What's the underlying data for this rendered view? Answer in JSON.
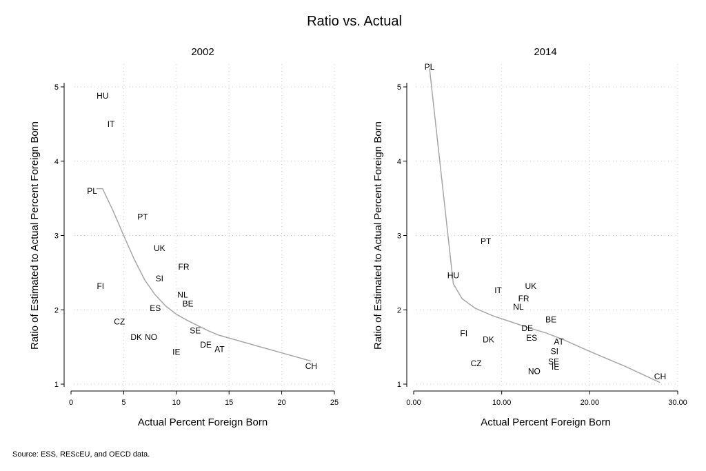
{
  "figure": {
    "title": "Ratio vs. Actual",
    "source": "Source: ESS, REScEU, and OECD data."
  },
  "chart_data": [
    {
      "type": "scatter",
      "title": "2002",
      "xlabel": "Actual Percent Foreign Born",
      "ylabel": "Ratio of Estimated to Actual Percent Foreign Born",
      "xlim": [
        0,
        25
      ],
      "ylim": [
        1,
        5
      ],
      "xticks": [
        0,
        5,
        10,
        15,
        20,
        25
      ],
      "xtick_labels": [
        "0",
        "5",
        "10",
        "15",
        "20",
        "25"
      ],
      "yticks": [
        1,
        2,
        3,
        4,
        5
      ],
      "ytick_labels": [
        "1",
        "2",
        "3",
        "4",
        "5"
      ],
      "grid": true,
      "points": [
        {
          "label": "HU",
          "x": 3.0,
          "y": 4.88
        },
        {
          "label": "IT",
          "x": 3.8,
          "y": 4.5
        },
        {
          "label": "PL",
          "x": 2.0,
          "y": 3.6
        },
        {
          "label": "PT",
          "x": 6.8,
          "y": 3.25
        },
        {
          "label": "UK",
          "x": 8.4,
          "y": 2.83
        },
        {
          "label": "FR",
          "x": 10.7,
          "y": 2.58
        },
        {
          "label": "SI",
          "x": 8.4,
          "y": 2.42
        },
        {
          "label": "FI",
          "x": 2.8,
          "y": 2.32
        },
        {
          "label": "NL",
          "x": 10.6,
          "y": 2.2
        },
        {
          "label": "BE",
          "x": 11.1,
          "y": 2.08
        },
        {
          "label": "ES",
          "x": 8.0,
          "y": 2.02
        },
        {
          "label": "CZ",
          "x": 4.6,
          "y": 1.84
        },
        {
          "label": "SE",
          "x": 11.8,
          "y": 1.72
        },
        {
          "label": "DK",
          "x": 6.2,
          "y": 1.63
        },
        {
          "label": "NO",
          "x": 7.6,
          "y": 1.63
        },
        {
          "label": "DE",
          "x": 12.8,
          "y": 1.53
        },
        {
          "label": "AT",
          "x": 14.1,
          "y": 1.47
        },
        {
          "label": "IE",
          "x": 10.0,
          "y": 1.43
        },
        {
          "label": "CH",
          "x": 22.8,
          "y": 1.24
        }
      ],
      "fit_line": {
        "x": [
          2.4,
          3.0,
          4.0,
          5.0,
          6.0,
          7.0,
          8.0,
          9.0,
          10.0,
          11.0,
          12.0,
          13.0,
          14.0,
          16.0,
          18.0,
          20.0,
          22.8
        ],
        "y": [
          3.63,
          3.63,
          3.33,
          3.0,
          2.68,
          2.4,
          2.2,
          2.05,
          1.94,
          1.86,
          1.79,
          1.72,
          1.66,
          1.58,
          1.5,
          1.42,
          1.31
        ]
      }
    },
    {
      "type": "scatter",
      "title": "2014",
      "xlabel": "Actual Percent Foreign Born",
      "ylabel": "Ratio of Estimated to Actual Percent Foreign Born",
      "xlim": [
        0,
        30
      ],
      "ylim": [
        1,
        5
      ],
      "xticks": [
        0,
        10,
        20,
        30
      ],
      "xtick_labels": [
        "0.00",
        "10.00",
        "20.00",
        "30.00"
      ],
      "yticks": [
        1,
        2,
        3,
        4,
        5
      ],
      "ytick_labels": [
        "1",
        "2",
        "3",
        "4",
        "5"
      ],
      "grid": true,
      "points": [
        {
          "label": "PL",
          "x": 1.8,
          "y": 5.27
        },
        {
          "label": "PT",
          "x": 8.2,
          "y": 2.92
        },
        {
          "label": "HU",
          "x": 4.5,
          "y": 2.46
        },
        {
          "label": "UK",
          "x": 13.3,
          "y": 2.32
        },
        {
          "label": "IT",
          "x": 9.6,
          "y": 2.26
        },
        {
          "label": "FR",
          "x": 12.5,
          "y": 2.15
        },
        {
          "label": "NL",
          "x": 11.9,
          "y": 2.04
        },
        {
          "label": "BE",
          "x": 15.6,
          "y": 1.87
        },
        {
          "label": "DE",
          "x": 12.9,
          "y": 1.75
        },
        {
          "label": "FI",
          "x": 5.7,
          "y": 1.68
        },
        {
          "label": "ES",
          "x": 13.4,
          "y": 1.62
        },
        {
          "label": "DK",
          "x": 8.5,
          "y": 1.6
        },
        {
          "label": "AT",
          "x": 16.5,
          "y": 1.57
        },
        {
          "label": "SI",
          "x": 16.0,
          "y": 1.44
        },
        {
          "label": "SE",
          "x": 15.9,
          "y": 1.3
        },
        {
          "label": "IE",
          "x": 16.1,
          "y": 1.23
        },
        {
          "label": "CZ",
          "x": 7.1,
          "y": 1.28
        },
        {
          "label": "NO",
          "x": 13.7,
          "y": 1.17
        },
        {
          "label": "CH",
          "x": 28.0,
          "y": 1.1
        }
      ],
      "fit_line": {
        "x": [
          1.8,
          4.5,
          5.5,
          7.0,
          9.0,
          11.0,
          13.0,
          15.0,
          17.0,
          20.0,
          24.0,
          28.0
        ],
        "y": [
          5.25,
          2.35,
          2.15,
          2.02,
          1.92,
          1.84,
          1.76,
          1.69,
          1.6,
          1.44,
          1.24,
          1.02
        ]
      }
    }
  ]
}
